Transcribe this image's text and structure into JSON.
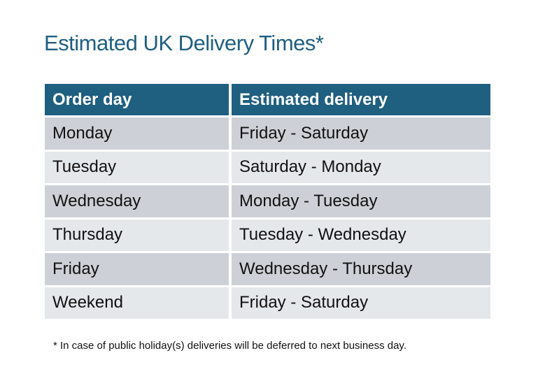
{
  "title": "Estimated UK Delivery Times*",
  "table": {
    "headers": [
      "Order day",
      "Estimated delivery"
    ],
    "rows": [
      [
        "Monday",
        "Friday - Saturday"
      ],
      [
        "Tuesday",
        "Saturday - Monday"
      ],
      [
        "Wednesday",
        "Monday - Tuesday"
      ],
      [
        "Thursday",
        "Tuesday - Wednesday"
      ],
      [
        "Friday",
        "Wednesday - Thursday"
      ],
      [
        "Weekend",
        "Friday - Saturday"
      ]
    ]
  },
  "footnote": "* In case of public holiday(s) deliveries will be deferred to next business day.",
  "colors": {
    "header": "#1f5f80",
    "row_dark": "#cdd1d7",
    "row_light": "#e5e8eb",
    "title": "#1f5f80"
  }
}
